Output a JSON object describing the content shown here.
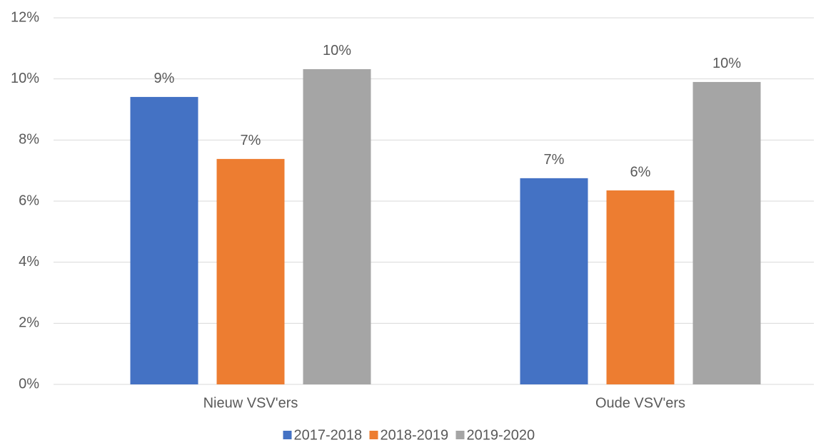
{
  "chart_data": {
    "type": "bar",
    "categories": [
      "Nieuw VSV'ers",
      "Oude VSV'ers"
    ],
    "series": [
      {
        "name": "2017-2018",
        "color": "#4472c4",
        "values": [
          9.41,
          6.75
        ],
        "value_labels": [
          "9%",
          "7%"
        ]
      },
      {
        "name": "2018-2019",
        "color": "#ed7d31",
        "values": [
          7.38,
          6.35
        ],
        "value_labels": [
          "7%",
          "6%"
        ]
      },
      {
        "name": "2019-2020",
        "color": "#a5a5a5",
        "values": [
          10.32,
          9.9
        ],
        "value_labels": [
          "10%",
          "10%"
        ]
      }
    ],
    "ylim": [
      0,
      12
    ],
    "yticks": [
      {
        "value": 0,
        "label": "0%"
      },
      {
        "value": 2,
        "label": "2%"
      },
      {
        "value": 4,
        "label": "4%"
      },
      {
        "value": 6,
        "label": "6%"
      },
      {
        "value": 8,
        "label": "8%"
      },
      {
        "value": 10,
        "label": "10%"
      },
      {
        "value": 12,
        "label": "12%"
      }
    ],
    "grid": true,
    "legend": "bottom"
  }
}
